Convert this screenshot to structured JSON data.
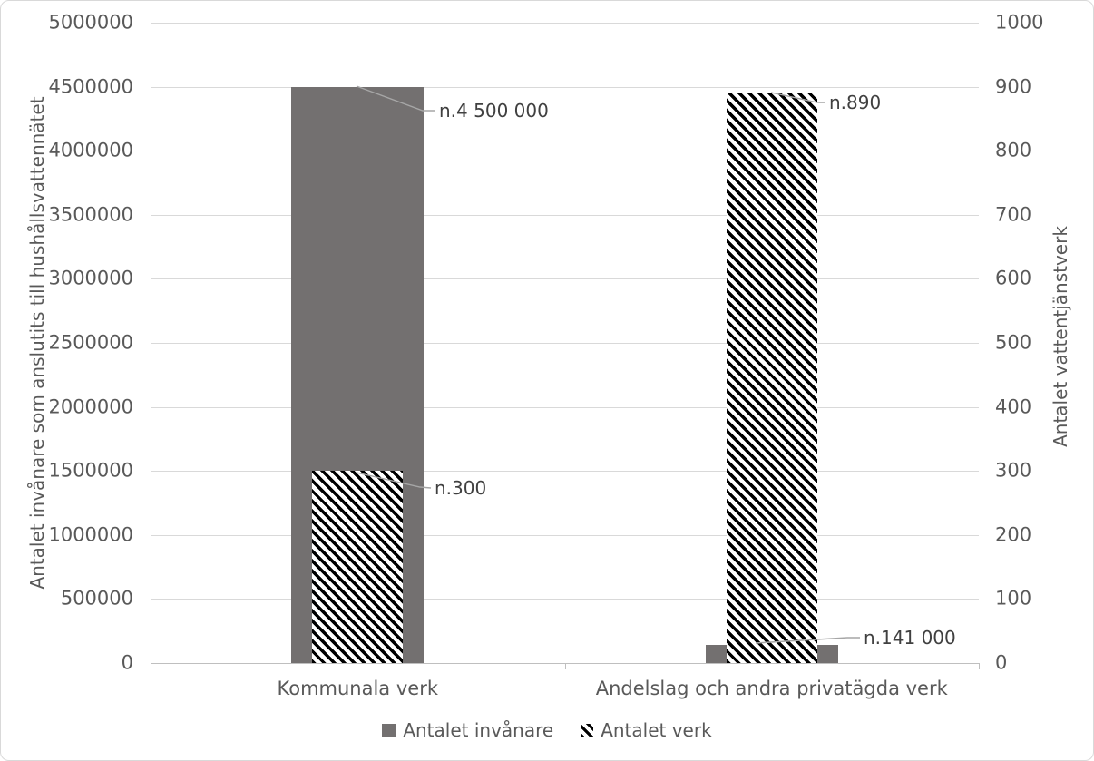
{
  "chart_data": {
    "type": "bar",
    "categories": [
      "Kommunala verk",
      "Andelslag och andra privatägda verk"
    ],
    "series": [
      {
        "name": "Antalet invånare",
        "axis": "left",
        "style": "solid",
        "color": "#737070",
        "values": [
          4500000,
          141000
        ]
      },
      {
        "name": "Antalet verk",
        "axis": "right",
        "style": "hatch",
        "color": "#000000",
        "values": [
          300,
          890
        ]
      }
    ],
    "left_axis": {
      "label": "Antalet invånare som anslutits till hushållsvattennätet",
      "min": 0,
      "max": 5000000,
      "step": 500000,
      "ticks": [
        "5000000",
        "4500000",
        "4000000",
        "3500000",
        "3000000",
        "2500000",
        "2000000",
        "1500000",
        "1000000",
        "500000",
        "0"
      ]
    },
    "right_axis": {
      "label": "Antalet vattentjänstverk",
      "min": 0,
      "max": 1000,
      "step": 100,
      "ticks": [
        "1000",
        "900",
        "800",
        "700",
        "600",
        "500",
        "400",
        "300",
        "200",
        "100",
        "0"
      ]
    },
    "annotations": [
      {
        "text": "n.4 500 000",
        "series": "Antalet invånare",
        "category": "Kommunala verk"
      },
      {
        "text": "n.300",
        "series": "Antalet verk",
        "category": "Kommunala verk"
      },
      {
        "text": "n.890",
        "series": "Antalet verk",
        "category": "Andelslag och andra privatägda verk"
      },
      {
        "text": "n.141 000",
        "series": "Antalet invånare",
        "category": "Andelslag och andra privatägda verk"
      }
    ],
    "legend_position": "bottom",
    "grid": true,
    "title": ""
  },
  "colors": {
    "bar_gray": "#737070",
    "hatch_black": "#000000",
    "gridline": "#D9D9D9",
    "axis_line": "#BFBFBF",
    "tick_text": "#595959",
    "annotation_text": "#404040",
    "leader_line": "#A6A6A6",
    "border": "#D9D9D9"
  }
}
